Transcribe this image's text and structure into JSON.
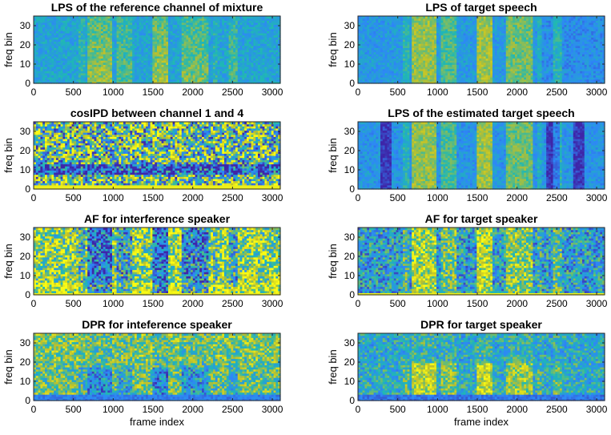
{
  "figure": {
    "colormap": [
      "#3e26a8",
      "#2e87f7",
      "#1fb8b4",
      "#bfc02a",
      "#f9fb15"
    ],
    "colormap_name": "parula"
  },
  "chart_data": [
    {
      "type": "heatmap",
      "title": "LPS of the reference channel of mixture",
      "xlabel": "",
      "ylabel": "freq bin",
      "xlim": [
        0,
        3100
      ],
      "ylim": [
        0,
        35
      ],
      "xticks": [
        0,
        500,
        1000,
        1500,
        2000,
        2500,
        3000
      ],
      "yticks": [
        0,
        10,
        20,
        30
      ],
      "pattern": "lps"
    },
    {
      "type": "heatmap",
      "title": "LPS of target speech",
      "xlabel": "",
      "ylabel": "",
      "xlim": [
        0,
        3100
      ],
      "ylim": [
        0,
        35
      ],
      "xticks": [
        0,
        500,
        1000,
        1500,
        2000,
        2500,
        3000
      ],
      "yticks": [
        0,
        10,
        20,
        30
      ],
      "pattern": "lps_target"
    },
    {
      "type": "heatmap",
      "title": "cosIPD between channel 1 and 4",
      "xlabel": "",
      "ylabel": "freq bin",
      "xlim": [
        0,
        3100
      ],
      "ylim": [
        0,
        35
      ],
      "xticks": [
        0,
        500,
        1000,
        1500,
        2000,
        2500,
        3000
      ],
      "yticks": [
        0,
        10,
        20,
        30
      ],
      "pattern": "cosipd"
    },
    {
      "type": "heatmap",
      "title": "LPS of the estimated target speech",
      "xlabel": "",
      "ylabel": "",
      "xlim": [
        0,
        3100
      ],
      "ylim": [
        0,
        35
      ],
      "xticks": [
        0,
        500,
        1000,
        1500,
        2000,
        2500,
        3000
      ],
      "yticks": [
        0,
        10,
        20,
        30
      ],
      "pattern": "lps_est"
    },
    {
      "type": "heatmap",
      "title": "AF for interference speaker",
      "xlabel": "",
      "ylabel": "freq bin",
      "xlim": [
        0,
        3100
      ],
      "ylim": [
        0,
        35
      ],
      "xticks": [
        0,
        500,
        1000,
        1500,
        2000,
        2500,
        3000
      ],
      "yticks": [
        0,
        10,
        20,
        30
      ],
      "pattern": "af_int"
    },
    {
      "type": "heatmap",
      "title": "AF for target speaker",
      "xlabel": "",
      "ylabel": "",
      "xlim": [
        0,
        3100
      ],
      "ylim": [
        0,
        35
      ],
      "xticks": [
        0,
        500,
        1000,
        1500,
        2000,
        2500,
        3000
      ],
      "yticks": [
        0,
        10,
        20,
        30
      ],
      "pattern": "af_tgt"
    },
    {
      "type": "heatmap",
      "title": "DPR for inteference speaker",
      "xlabel": "frame index",
      "ylabel": "freq bin",
      "xlim": [
        0,
        3100
      ],
      "ylim": [
        0,
        35
      ],
      "xticks": [
        0,
        500,
        1000,
        1500,
        2000,
        2500,
        3000
      ],
      "yticks": [
        0,
        10,
        20,
        30
      ],
      "pattern": "dpr_int"
    },
    {
      "type": "heatmap",
      "title": "DPR for target speaker",
      "xlabel": "frame index",
      "ylabel": "",
      "xlim": [
        0,
        3100
      ],
      "ylim": [
        0,
        35
      ],
      "xticks": [
        0,
        500,
        1000,
        1500,
        2000,
        2500,
        3000
      ],
      "yticks": [
        0,
        10,
        20,
        30
      ],
      "pattern": "dpr_tgt"
    }
  ]
}
